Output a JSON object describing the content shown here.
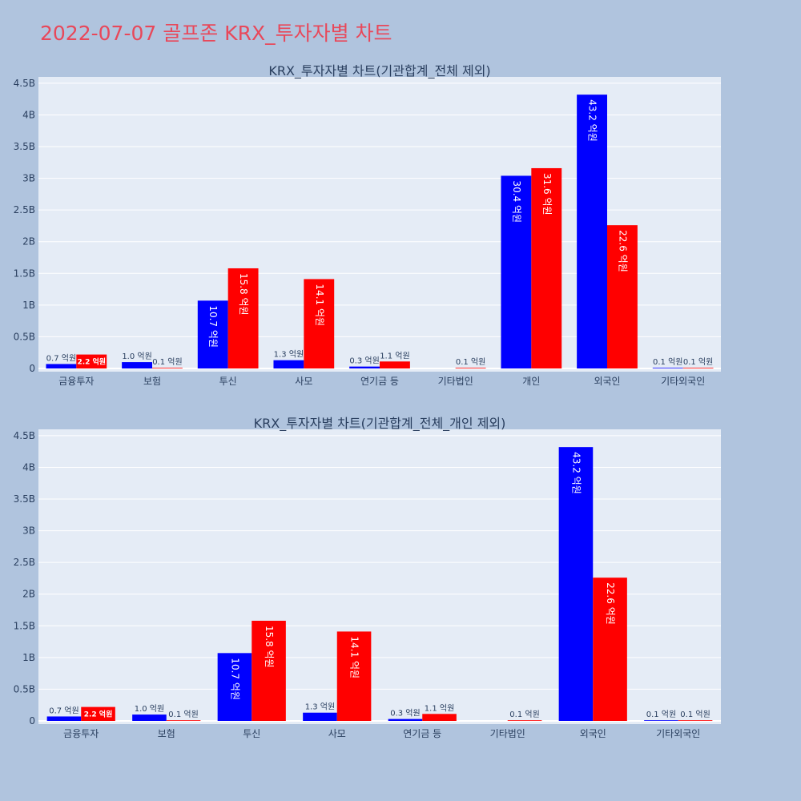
{
  "page_title": "2022-07-07 골프존 KRX_투자자별 차트",
  "colors": {
    "background": "#b0c4de",
    "plot_bg": "#e5ecf6",
    "title": "#e8485a",
    "series_a": "#0000ff",
    "series_b": "#ff0000"
  },
  "chart_data": [
    {
      "type": "bar",
      "title": "KRX_투자자별 차트(기관합계_전체 제외)",
      "categories": [
        "금융투자",
        "보험",
        "투신",
        "사모",
        "연기금 등",
        "기타법인",
        "개인",
        "외국인",
        "기타외국인"
      ],
      "series": [
        {
          "color": "#0000ff",
          "values": [
            0.07,
            0.1,
            1.07,
            0.13,
            0.03,
            0.0,
            3.04,
            4.32,
            0.01
          ],
          "labels": [
            "0.7 억원",
            "1.0 억원",
            "10.7 억원",
            "1.3 억원",
            "0.3 억원",
            "",
            "30.4 억원",
            "43.2 억원",
            "0.1 억원"
          ]
        },
        {
          "color": "#ff0000",
          "values": [
            0.22,
            0.01,
            1.58,
            1.41,
            0.11,
            0.01,
            3.16,
            2.26,
            0.01
          ],
          "labels": [
            "2.2 억원",
            "0.1 억원",
            "15.8 억원",
            "14.1 억원",
            "1.1 억원",
            "0.1 억원",
            "31.6 억원",
            "22.6 억원",
            "0.1 억원"
          ]
        }
      ],
      "ylim": [
        0,
        4.6
      ],
      "yticks": [
        0,
        0.5,
        1,
        1.5,
        2,
        2.5,
        3,
        3.5,
        4,
        4.5
      ],
      "ytick_labels": [
        "0",
        "0.5B",
        "1B",
        "1.5B",
        "2B",
        "2.5B",
        "3B",
        "3.5B",
        "4B",
        "4.5B"
      ],
      "grid": true
    },
    {
      "type": "bar",
      "title": "KRX_투자자별 차트(기관합계_전체_개인 제외)",
      "categories": [
        "금융투자",
        "보험",
        "투신",
        "사모",
        "연기금 등",
        "기타법인",
        "외국인",
        "기타외국인"
      ],
      "series": [
        {
          "color": "#0000ff",
          "values": [
            0.07,
            0.1,
            1.07,
            0.13,
            0.03,
            0.0,
            4.32,
            0.01
          ],
          "labels": [
            "0.7 억원",
            "1.0 억원",
            "10.7 억원",
            "1.3 억원",
            "0.3 억원",
            "",
            "43.2 억원",
            "0.1 억원"
          ]
        },
        {
          "color": "#ff0000",
          "values": [
            0.22,
            0.01,
            1.58,
            1.41,
            0.11,
            0.01,
            2.26,
            0.01
          ],
          "labels": [
            "2.2 억원",
            "0.1 억원",
            "15.8 억원",
            "14.1 억원",
            "1.1 억원",
            "0.1 억원",
            "22.6 억원",
            "0.1 억원"
          ]
        }
      ],
      "ylim": [
        0,
        4.6
      ],
      "yticks": [
        0,
        0.5,
        1,
        1.5,
        2,
        2.5,
        3,
        3.5,
        4,
        4.5
      ],
      "ytick_labels": [
        "0",
        "0.5B",
        "1B",
        "1.5B",
        "2B",
        "2.5B",
        "3B",
        "3.5B",
        "4B",
        "4.5B"
      ],
      "grid": true
    }
  ]
}
